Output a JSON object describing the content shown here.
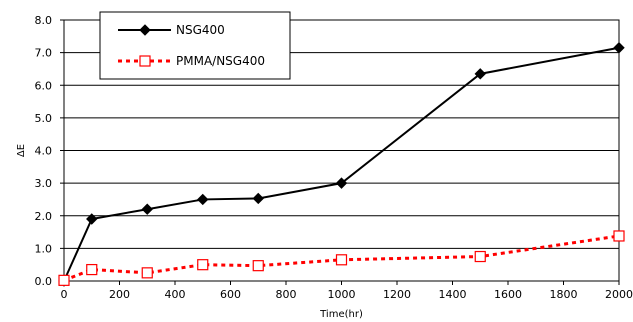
{
  "chart_data": {
    "type": "line",
    "xlabel": "Time(hr)",
    "ylabel": "ΔE",
    "xlim": [
      0,
      2000
    ],
    "ylim": [
      0,
      8
    ],
    "x_ticks": [
      "0",
      "200",
      "400",
      "600",
      "800",
      "1000",
      "1200",
      "1400",
      "1600",
      "1800",
      "2000"
    ],
    "y_ticks": [
      "0.0",
      "1.0",
      "2.0",
      "3.0",
      "4.0",
      "5.0",
      "6.0",
      "7.0",
      "8.0"
    ],
    "grid": "horizontal",
    "legend_position": "top-left",
    "series": [
      {
        "name": "NSG400",
        "color": "#000000",
        "line_style": "solid",
        "marker": "filled-diamond",
        "x": [
          0,
          100,
          300,
          500,
          700,
          1000,
          1500,
          2000
        ],
        "y": [
          0.0,
          1.9,
          2.2,
          2.5,
          2.53,
          3.0,
          6.35,
          7.15
        ]
      },
      {
        "name": "PMMA/NSG400",
        "color": "#ff0000",
        "line_style": "dotted",
        "marker": "open-square",
        "x": [
          0,
          100,
          300,
          500,
          700,
          1000,
          1500,
          2000
        ],
        "y": [
          0.02,
          0.35,
          0.25,
          0.5,
          0.47,
          0.65,
          0.75,
          1.38
        ]
      }
    ]
  }
}
